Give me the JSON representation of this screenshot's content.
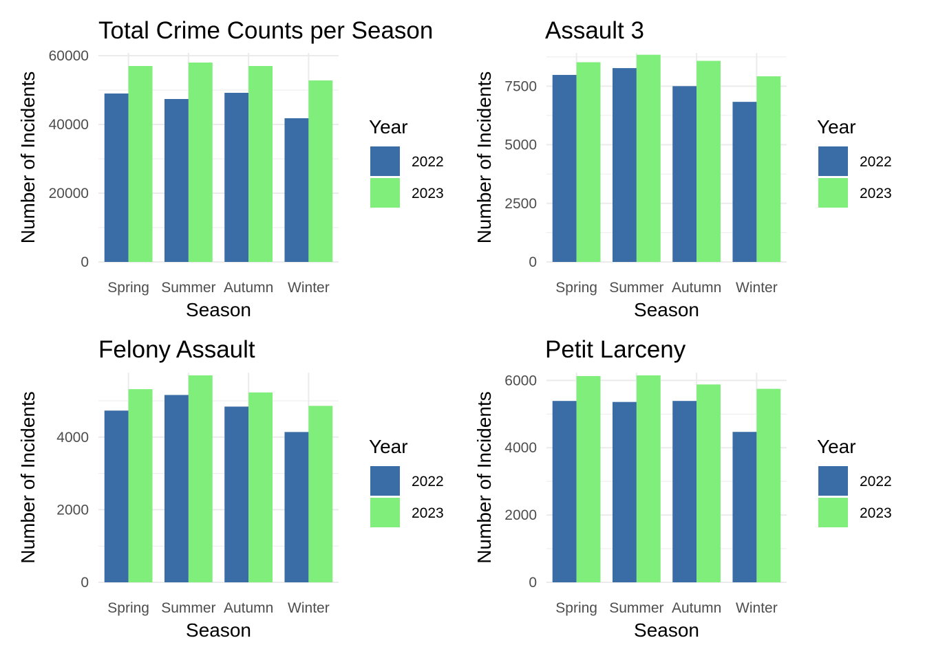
{
  "colors": {
    "2022": "#3a6ca6",
    "2023": "#80ee7b",
    "grid": "#ebebeb",
    "tick": "#4d4d4d"
  },
  "chart_data": [
    {
      "type": "bar",
      "title": "Total Crime Counts per Season",
      "xlabel": "Season",
      "ylabel": "Number of Incidents",
      "categories": [
        "Spring",
        "Summer",
        "Autumn",
        "Winter"
      ],
      "yticks": [
        0,
        20000,
        40000,
        60000
      ],
      "ylim": [
        0,
        60000
      ],
      "grid": true,
      "legend": {
        "title": "Year",
        "position": "right"
      },
      "series": [
        {
          "name": "2022",
          "values": [
            49000,
            47400,
            49200,
            41800
          ]
        },
        {
          "name": "2023",
          "values": [
            57000,
            58000,
            57000,
            52800
          ]
        }
      ]
    },
    {
      "type": "bar",
      "title": "Assault 3",
      "xlabel": "Season",
      "ylabel": "Number of Incidents",
      "categories": [
        "Spring",
        "Summer",
        "Autumn",
        "Winter"
      ],
      "yticks": [
        0,
        2500,
        5000,
        7500
      ],
      "ylim": [
        0,
        8800
      ],
      "grid": true,
      "legend": {
        "title": "Year",
        "position": "right"
      },
      "series": [
        {
          "name": "2022",
          "values": [
            7980,
            8270,
            7500,
            6830
          ]
        },
        {
          "name": "2023",
          "values": [
            8520,
            8840,
            8580,
            7920
          ]
        }
      ]
    },
    {
      "type": "bar",
      "title": "Felony Assault",
      "xlabel": "Season",
      "ylabel": "Number of Incidents",
      "categories": [
        "Spring",
        "Summer",
        "Autumn",
        "Winter"
      ],
      "yticks": [
        0,
        2000,
        4000
      ],
      "ylim": [
        0,
        5700
      ],
      "grid": true,
      "legend": {
        "title": "Year",
        "position": "right"
      },
      "series": [
        {
          "name": "2022",
          "values": [
            4730,
            5160,
            4840,
            4140
          ]
        },
        {
          "name": "2023",
          "values": [
            5320,
            5700,
            5230,
            4860
          ]
        }
      ]
    },
    {
      "type": "bar",
      "title": "Petit Larceny",
      "xlabel": "Season",
      "ylabel": "Number of Incidents",
      "categories": [
        "Spring",
        "Summer",
        "Autumn",
        "Winter"
      ],
      "yticks": [
        0,
        2000,
        4000,
        6000
      ],
      "ylim": [
        0,
        6150
      ],
      "grid": true,
      "legend": {
        "title": "Year",
        "position": "right"
      },
      "series": [
        {
          "name": "2022",
          "values": [
            5390,
            5360,
            5390,
            4470
          ]
        },
        {
          "name": "2023",
          "values": [
            6130,
            6150,
            5880,
            5750
          ]
        }
      ]
    }
  ]
}
